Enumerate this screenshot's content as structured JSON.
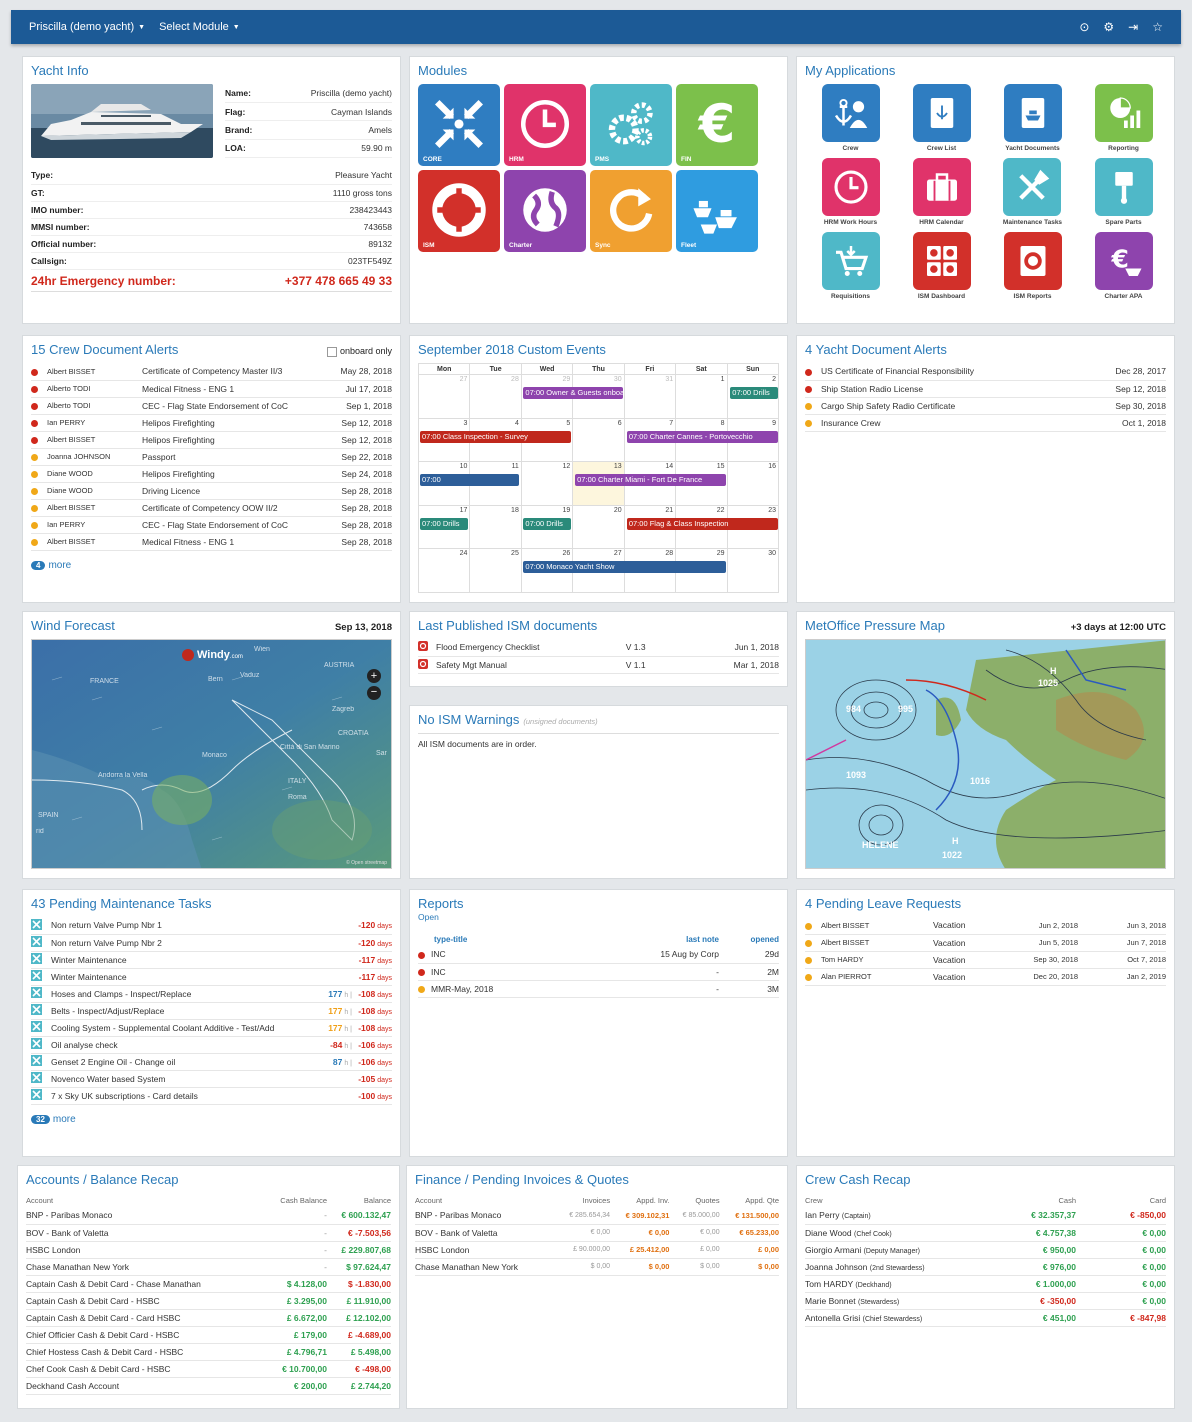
{
  "topbar": {
    "yacht": "Priscilla (demo yacht)",
    "module": "Select Module"
  },
  "yacht_info": {
    "title": "Yacht Info",
    "top": [
      {
        "k": "Name:",
        "v": "Priscilla (demo yacht)"
      },
      {
        "k": "Flag:",
        "v": "Cayman Islands"
      },
      {
        "k": "Brand:",
        "v": "Amels"
      },
      {
        "k": "LOA:",
        "v": "59.90 m"
      }
    ],
    "rows": [
      {
        "k": "Type:",
        "v": "Pleasure Yacht"
      },
      {
        "k": "GT:",
        "v": "1110 gross tons"
      },
      {
        "k": "IMO number:",
        "v": "238423443"
      },
      {
        "k": "MMSI number:",
        "v": "743658"
      },
      {
        "k": "Official number:",
        "v": "89132"
      },
      {
        "k": "Callsign:",
        "v": "023TF549Z"
      }
    ],
    "emergency_label": "24hr Emergency number:",
    "emergency_value": "+377 478 665 49 33"
  },
  "modules": {
    "title": "Modules",
    "items": [
      {
        "label": "CORE",
        "color": "#2f7dc1",
        "icon": "arrows-in-icon"
      },
      {
        "label": "HRM",
        "color": "#e0336a",
        "icon": "clock-icon"
      },
      {
        "label": "PMS",
        "color": "#4fb8c8",
        "icon": "gears-icon"
      },
      {
        "label": "FIN",
        "color": "#7cc04b",
        "icon": "euro-icon"
      },
      {
        "label": "ISM",
        "color": "#d2302a",
        "icon": "lifebuoy-icon"
      },
      {
        "label": "Charter",
        "color": "#8e44ad",
        "icon": "globe-icon"
      },
      {
        "label": "Sync",
        "color": "#f0a030",
        "icon": "sync-icon"
      },
      {
        "label": "Fleet",
        "color": "#2f9ce0",
        "icon": "ships-icon"
      }
    ]
  },
  "apps": {
    "title": "My Applications",
    "items": [
      {
        "label": "Crew",
        "color": "#2f7dc1",
        "icon": "anchor-person-icon"
      },
      {
        "label": "Crew List",
        "color": "#2f7dc1",
        "icon": "crew-list-icon"
      },
      {
        "label": "Yacht Documents",
        "color": "#2f7dc1",
        "icon": "yacht-documents-icon"
      },
      {
        "label": "Reporting",
        "color": "#7cc04b",
        "icon": "pie-chart-icon"
      },
      {
        "label": "HRM Work Hours",
        "color": "#e0336a",
        "icon": "clock-icon"
      },
      {
        "label": "HRM Calendar",
        "color": "#e0336a",
        "icon": "briefcase-icon"
      },
      {
        "label": "Maintenance Tasks",
        "color": "#4fb8c8",
        "icon": "tools-icon"
      },
      {
        "label": "Spare Parts",
        "color": "#4fb8c8",
        "icon": "piston-icon"
      },
      {
        "label": "Requisitions",
        "color": "#4fb8c8",
        "icon": "cart-icon"
      },
      {
        "label": "ISM Dashboard",
        "color": "#d2302a",
        "icon": "ism-dashboard-icon"
      },
      {
        "label": "ISM Reports",
        "color": "#d2302a",
        "icon": "ism-reports-icon"
      },
      {
        "label": "Charter APA",
        "color": "#8e44ad",
        "icon": "euro-ship-icon"
      }
    ]
  },
  "crew_alerts": {
    "title": "15 Crew Document Alerts",
    "onboard": "onboard only",
    "more_count": "4",
    "more": "more",
    "rows": [
      {
        "s": "red",
        "n": "Albert BISSET",
        "d": "Certificate of Competency Master II/3",
        "t": "May 28, 2018"
      },
      {
        "s": "red",
        "n": "Alberto TODI",
        "d": "Medical Fitness - ENG 1",
        "t": "Jul 17, 2018"
      },
      {
        "s": "red",
        "n": "Alberto TODI",
        "d": "CEC - Flag State Endorsement of CoC",
        "t": "Sep 1, 2018"
      },
      {
        "s": "red",
        "n": "Ian PERRY",
        "d": "Helipos Firefighting",
        "t": "Sep 12, 2018"
      },
      {
        "s": "red",
        "n": "Albert BISSET",
        "d": "Helipos Firefighting",
        "t": "Sep 12, 2018"
      },
      {
        "s": "yel",
        "n": "Joanna JOHNSON",
        "d": "Passport",
        "t": "Sep 22, 2018"
      },
      {
        "s": "yel",
        "n": "Diane WOOD",
        "d": "Helipos Firefighting",
        "t": "Sep 24, 2018"
      },
      {
        "s": "yel",
        "n": "Diane WOOD",
        "d": "Driving Licence",
        "t": "Sep 28, 2018"
      },
      {
        "s": "yel",
        "n": "Albert BISSET",
        "d": "Certificate of Competency OOW II/2",
        "t": "Sep 28, 2018"
      },
      {
        "s": "yel",
        "n": "Ian PERRY",
        "d": "CEC - Flag State Endorsement of CoC",
        "t": "Sep 28, 2018"
      },
      {
        "s": "yel",
        "n": "Albert BISSET",
        "d": "Medical Fitness - ENG 1",
        "t": "Sep 28, 2018"
      }
    ]
  },
  "calendar": {
    "title": "September 2018 Custom Events",
    "days": [
      "Mon",
      "Tue",
      "Wed",
      "Thu",
      "Fri",
      "Sat",
      "Sun"
    ],
    "weeks": [
      [
        "27",
        "28",
        "29",
        "30",
        "31",
        "1",
        "2"
      ],
      [
        "3",
        "4",
        "5",
        "6",
        "7",
        "8",
        "9"
      ],
      [
        "10",
        "11",
        "12",
        "13",
        "14",
        "15",
        "16"
      ],
      [
        "17",
        "18",
        "19",
        "20",
        "21",
        "22",
        "23"
      ],
      [
        "24",
        "25",
        "26",
        "27",
        "28",
        "29",
        "30"
      ]
    ],
    "events": [
      {
        "w": 0,
        "start": 2,
        "span": 2,
        "cls": "pur",
        "t": "07:00 Owner & Guests onboard"
      },
      {
        "w": 0,
        "start": 6,
        "span": 1,
        "cls": "teal",
        "t": "07:00 Drills"
      },
      {
        "w": 1,
        "start": 0,
        "span": 3,
        "cls": "red",
        "t": "07:00 Class Inspection - Survey"
      },
      {
        "w": 1,
        "start": 4,
        "span": 3,
        "cls": "pur",
        "t": "07:00 Charter Cannes - Portovecchio"
      },
      {
        "w": 2,
        "start": 0,
        "span": 2,
        "cls": "blu",
        "t": "07:00"
      },
      {
        "w": 2,
        "start": 3,
        "span": 3,
        "cls": "pur",
        "t": "07:00 Charter Miami - Fort De France"
      },
      {
        "w": 3,
        "start": 0,
        "span": 1,
        "cls": "teal",
        "t": "07:00 Drills"
      },
      {
        "w": 3,
        "start": 2,
        "span": 1,
        "cls": "teal",
        "t": "07:00 Drills"
      },
      {
        "w": 3,
        "start": 4,
        "span": 3,
        "cls": "red",
        "t": "07:00 Flag & Class Inspection"
      },
      {
        "w": 4,
        "start": 2,
        "span": 4,
        "cls": "blu",
        "t": "07:00 Monaco Yacht Show"
      }
    ]
  },
  "yacht_alerts": {
    "title": "4 Yacht Document Alerts",
    "rows": [
      {
        "s": "red",
        "d": "US Certificate of Financial Responsibility",
        "t": "Dec 28, 2017"
      },
      {
        "s": "red",
        "d": "Ship Station Radio License",
        "t": "Sep 12, 2018"
      },
      {
        "s": "yel",
        "d": "Cargo Ship Safety Radio Certificate",
        "t": "Sep 30, 2018"
      },
      {
        "s": "yel",
        "d": "Insurance Crew",
        "t": "Oct 1, 2018"
      }
    ]
  },
  "wind": {
    "title": "Wind Forecast",
    "date": "Sep 13, 2018",
    "brand": "Windy",
    "brand_sub": ".com",
    "places": [
      "Wien",
      "AUSTRIA",
      "Vaduz",
      "Bern",
      "FRANCE",
      "Zagreb",
      "CROATIA",
      "Città di San Marino",
      "Monaco",
      "ITALY",
      "Andorra la Vella",
      "Roma",
      "SPAIN",
      "rid",
      "Sar"
    ],
    "credit": "© Open streetmap"
  },
  "ism_docs": {
    "title": "Last Published ISM documents",
    "rows": [
      {
        "n": "Flood Emergency Checklist",
        "v": "V 1.3",
        "d": "Jun 1, 2018"
      },
      {
        "n": "Safety Mgt Manual",
        "v": "V 1.1",
        "d": "Mar 1, 2018"
      }
    ]
  },
  "ism_warn": {
    "title": "No ISM Warnings",
    "sub": "(unsigned documents)",
    "text": "All ISM documents are in order."
  },
  "pressure": {
    "title": "MetOffice Pressure Map",
    "aux": "+3 days at 12:00 UTC",
    "labels": [
      "H",
      "1025",
      "1093",
      "1016",
      "H",
      "1022",
      "HELENE",
      "984",
      "995"
    ]
  },
  "maint": {
    "title": "43 Pending Maintenance Tasks",
    "more_count": "32",
    "more": "more",
    "rows": [
      {
        "t": "Non return Valve Pump Nbr 1",
        "h": "",
        "d": "-120",
        "u": "days"
      },
      {
        "t": "Non return Valve Pump Nbr 2",
        "h": "",
        "d": "-120",
        "u": "days"
      },
      {
        "t": "Winter Maintenance",
        "h": "",
        "d": "-117",
        "u": "days"
      },
      {
        "t": "Winter Maintenance",
        "h": "",
        "d": "-117",
        "u": "days"
      },
      {
        "t": "Hoses and Clamps - Inspect/Replace",
        "h": "177",
        "hc": "blue",
        "d": "-108",
        "u": "days"
      },
      {
        "t": "Belts - Inspect/Adjust/Replace",
        "h": "177",
        "hc": "orange",
        "d": "-108",
        "u": "days"
      },
      {
        "t": "Cooling System - Supplemental Coolant Additive - Test/Add",
        "h": "177",
        "hc": "orange",
        "d": "-108",
        "u": "days"
      },
      {
        "t": "Oil analyse check",
        "h": "-84",
        "hc": "red",
        "d": "-106",
        "u": "days"
      },
      {
        "t": "Genset 2 Engine Oil - Change oil",
        "h": "87",
        "hc": "blue",
        "d": "-106",
        "u": "days"
      },
      {
        "t": "Novenco Water based System",
        "h": "",
        "d": "-105",
        "u": "days"
      },
      {
        "t": "7 x Sky UK subscriptions - Card details",
        "h": "",
        "d": "-100",
        "u": "days"
      }
    ]
  },
  "reports": {
    "title": "Reports",
    "sub": "Open",
    "headers": [
      "type-title",
      "last note",
      "opened"
    ],
    "rows": [
      {
        "s": "red",
        "t": "INC",
        "n": "15 Aug by Corp",
        "o": "29d"
      },
      {
        "s": "red",
        "t": "INC",
        "n": "-",
        "o": "2M"
      },
      {
        "s": "yel",
        "t": "MMR-May, 2018",
        "n": "-",
        "o": "3M"
      }
    ]
  },
  "leave": {
    "title": "4 Pending Leave Requests",
    "rows": [
      {
        "n": "Albert BISSET",
        "t": "Vacation",
        "a": "Jun 2, 2018",
        "b": "Jun 3, 2018"
      },
      {
        "n": "Albert BISSET",
        "t": "Vacation",
        "a": "Jun 5, 2018",
        "b": "Jun 7, 2018"
      },
      {
        "n": "Tom HARDY",
        "t": "Vacation",
        "a": "Sep 30, 2018",
        "b": "Oct 7, 2018"
      },
      {
        "n": "Alan PIERROT",
        "t": "Vacation",
        "a": "Dec 20, 2018",
        "b": "Jan 2, 2019"
      }
    ]
  },
  "accounts": {
    "title": "Accounts / Balance Recap",
    "headers": [
      "Account",
      "Cash Balance",
      "Balance"
    ],
    "rows": [
      {
        "a": "BNP - Paribas Monaco",
        "c": "-",
        "cc": "mute",
        "b": "€ 600.132,47",
        "bc": "pos"
      },
      {
        "a": "BOV - Bank of Valetta",
        "c": "-",
        "cc": "mute",
        "b": "€ -7.503,56",
        "bc": "neg"
      },
      {
        "a": "HSBC London",
        "c": "-",
        "cc": "mute",
        "b": "£ 229.807,68",
        "bc": "pos"
      },
      {
        "a": "Chase Manathan New York",
        "c": "-",
        "cc": "mute",
        "b": "$ 97.624,47",
        "bc": "pos"
      },
      {
        "a": "Captain Cash & Debit Card - Chase Manathan",
        "c": "$ 4.128,00",
        "cc": "pos",
        "b": "$ -1.830,00",
        "bc": "neg"
      },
      {
        "a": "Captain Cash & Debit Card - HSBC",
        "c": "£ 3.295,00",
        "cc": "pos",
        "b": "£ 11.910,00",
        "bc": "pos"
      },
      {
        "a": "Captain Cash & Debit Card - Card HSBC",
        "c": "£ 6.672,00",
        "cc": "pos",
        "b": "£ 12.102,00",
        "bc": "pos"
      },
      {
        "a": "Chief Officier Cash & Debit Card - HSBC",
        "c": "£ 179,00",
        "cc": "pos",
        "b": "£ -4.689,00",
        "bc": "neg"
      },
      {
        "a": "Chief Hostess Cash & Debit Card - HSBC",
        "c": "£ 4.796,71",
        "cc": "pos",
        "b": "£ 5.498,00",
        "bc": "pos"
      },
      {
        "a": "Chef Cook Cash & Debit Card - HSBC",
        "c": "€ 10.700,00",
        "cc": "pos",
        "b": "€ -498,00",
        "bc": "neg"
      },
      {
        "a": "Deckhand Cash Account",
        "c": "€ 200,00",
        "cc": "pos",
        "b": "£ 2.744,20",
        "bc": "pos"
      }
    ]
  },
  "finance": {
    "title": "Finance / Pending Invoices & Quotes",
    "headers": [
      "Account",
      "Invoices",
      "Appd. Inv.",
      "Quotes",
      "Appd. Qte"
    ],
    "rows": [
      {
        "a": "BNP - Paribas Monaco",
        "i": "€ 285.654,34",
        "ai": "€ 309.102,31",
        "q": "€ 85.000,00",
        "aq": "€ 131.500,00"
      },
      {
        "a": "BOV - Bank of Valetta",
        "i": "€ 0,00",
        "ai": "€ 0,00",
        "q": "€ 0,00",
        "aq": "€ 65.233,00"
      },
      {
        "a": "HSBC London",
        "i": "£ 90.000,00",
        "ai": "£ 25.412,00",
        "q": "£ 0,00",
        "aq": "£ 0,00"
      },
      {
        "a": "Chase Manathan New York",
        "i": "$ 0,00",
        "ai": "$ 0,00",
        "q": "$ 0,00",
        "aq": "$ 0,00"
      }
    ]
  },
  "crewcash": {
    "title": "Crew Cash Recap",
    "headers": [
      "Crew",
      "Cash",
      "Card"
    ],
    "rows": [
      {
        "n": "Ian Perry",
        "r": "(Captain)",
        "c": "€ 32.357,37",
        "cc": "pos",
        "d": "€ -850,00",
        "dc": "neg"
      },
      {
        "n": "Diane Wood",
        "r": "(Chef Cook)",
        "c": "€ 4.757,38",
        "cc": "pos",
        "d": "€ 0,00",
        "dc": "pos"
      },
      {
        "n": "Giorgio Armani",
        "r": "(Deputy Manager)",
        "c": "€ 950,00",
        "cc": "pos",
        "d": "€ 0,00",
        "dc": "pos"
      },
      {
        "n": "Joanna Johnson",
        "r": "(2nd Stewardess)",
        "c": "€ 976,00",
        "cc": "pos",
        "d": "€ 0,00",
        "dc": "pos"
      },
      {
        "n": "Tom HARDY",
        "r": "(Deckhand)",
        "c": "€ 1.000,00",
        "cc": "pos",
        "d": "€ 0,00",
        "dc": "pos"
      },
      {
        "n": "Marie Bonnet",
        "r": "(Stewardess)",
        "c": "€ -350,00",
        "cc": "neg",
        "d": "€ 0,00",
        "dc": "pos"
      },
      {
        "n": "Antonella Grisi",
        "r": "(Chief Stewardess)",
        "c": "€ 451,00",
        "cc": "pos",
        "d": "€ -847,98",
        "dc": "neg"
      }
    ]
  }
}
